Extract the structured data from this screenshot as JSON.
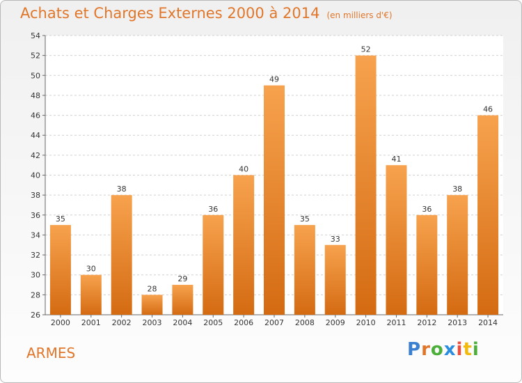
{
  "title": "Achats et Charges Externes 2000 à 2014",
  "subtitle": "(en milliers d'€)",
  "place": "ARMES",
  "logo": {
    "text": "Proxiti"
  },
  "colors": {
    "bar_top": "#f7a24e",
    "bar_bottom": "#d46b12",
    "title": "#e0762a",
    "grid": "#d0d0d0"
  },
  "chart_data": {
    "type": "bar",
    "categories": [
      "2000",
      "2001",
      "2002",
      "2003",
      "2004",
      "2005",
      "2006",
      "2007",
      "2008",
      "2009",
      "2010",
      "2011",
      "2012",
      "2013",
      "2014"
    ],
    "values": [
      35,
      30,
      38,
      28,
      29,
      36,
      40,
      49,
      35,
      33,
      52,
      41,
      36,
      38,
      46
    ],
    "ylim": [
      26,
      54
    ],
    "yticks": [
      26,
      28,
      30,
      32,
      34,
      36,
      38,
      40,
      42,
      44,
      46,
      48,
      50,
      52,
      54
    ],
    "grid": true,
    "xlabel": "",
    "ylabel": ""
  }
}
